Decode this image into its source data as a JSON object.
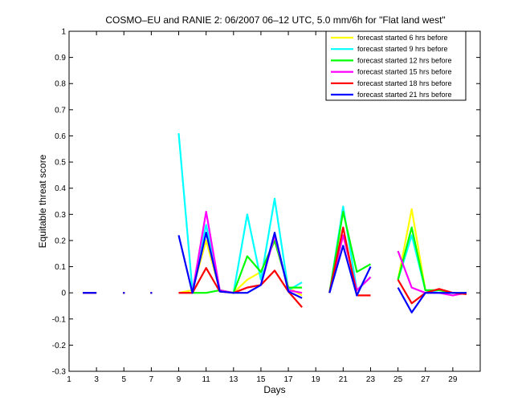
{
  "chart_data": {
    "type": "line",
    "title": "COSMO–EU and RANIE 2: 06/2007 06–12 UTC, 5.0 mm/6h for \"Flat land west\"",
    "xlabel": "Days",
    "ylabel": "Equitable threat score",
    "xlim": [
      1,
      31
    ],
    "ylim": [
      -0.3,
      1
    ],
    "x_ticks": [
      1,
      3,
      5,
      7,
      9,
      11,
      13,
      15,
      17,
      19,
      21,
      23,
      25,
      27,
      29
    ],
    "y_ticks": [
      -0.3,
      -0.2,
      -0.1,
      0,
      0.1,
      0.2,
      0.3,
      0.4,
      0.5,
      0.6,
      0.7,
      0.8,
      0.9,
      1
    ],
    "legend_position": "top-right",
    "grid": false,
    "x": [
      1,
      2,
      3,
      4,
      5,
      6,
      7,
      8,
      9,
      10,
      11,
      12,
      13,
      14,
      15,
      16,
      17,
      18,
      19,
      20,
      21,
      22,
      23,
      24,
      25,
      26,
      27,
      28,
      29,
      30
    ],
    "series": [
      {
        "name": "forecast started 6 hrs before",
        "color": "#ffff00",
        "values": [
          null,
          0,
          0,
          null,
          0,
          null,
          0,
          null,
          0,
          0.01,
          0.2,
          0.01,
          0,
          0.05,
          0.08,
          0.2,
          0.02,
          -0.01,
          null,
          0,
          0.22,
          0.01,
          0.06,
          null,
          0.05,
          0.32,
          0.01,
          0,
          0,
          0
        ]
      },
      {
        "name": "forecast started 9 hrs before",
        "color": "#00ffff",
        "values": [
          null,
          0,
          0,
          null,
          0,
          null,
          0,
          null,
          0.61,
          0.01,
          0.26,
          0.01,
          0,
          0.3,
          0.05,
          0.36,
          0.01,
          0.04,
          null,
          0,
          0.33,
          0.01,
          0.06,
          null,
          0.05,
          0.22,
          0.01,
          0,
          0,
          0
        ]
      },
      {
        "name": "forecast started 12 hrs before",
        "color": "#00ff00",
        "values": [
          null,
          0,
          0,
          null,
          0,
          null,
          0,
          null,
          0,
          0,
          0,
          0.01,
          0,
          0.14,
          0.08,
          0.2,
          0.02,
          0.02,
          null,
          0,
          0.31,
          0.08,
          0.11,
          null,
          0.05,
          0.25,
          0.01,
          0.01,
          0,
          0
        ]
      },
      {
        "name": "forecast started 15 hrs before",
        "color": "#ff00ff",
        "values": [
          null,
          0,
          0,
          null,
          0,
          null,
          0,
          null,
          0,
          0,
          0.31,
          0.01,
          0,
          0.02,
          0.03,
          0.22,
          0.01,
          0,
          null,
          0,
          0.22,
          0.01,
          0.06,
          null,
          0.16,
          0.02,
          0,
          0,
          -0.01,
          0
        ]
      },
      {
        "name": "forecast started 18 hrs before",
        "color": "#ff0000",
        "values": [
          null,
          0,
          0,
          null,
          0,
          null,
          0,
          null,
          0,
          0,
          0.095,
          0.005,
          0,
          0.02,
          0.03,
          0.085,
          0.005,
          -0.055,
          null,
          0,
          0.25,
          -0.01,
          -0.01,
          null,
          0.05,
          -0.04,
          0,
          0.015,
          0,
          -0.005
        ]
      },
      {
        "name": "forecast started 21 hrs before",
        "color": "#0000ff",
        "values": [
          null,
          0,
          0,
          null,
          0,
          null,
          0,
          null,
          0.22,
          0,
          0.23,
          0.005,
          0,
          0,
          0.03,
          0.23,
          0.005,
          -0.02,
          null,
          0,
          0.18,
          -0.01,
          0.1,
          null,
          0.02,
          -0.075,
          0,
          0,
          0,
          0
        ]
      }
    ]
  }
}
